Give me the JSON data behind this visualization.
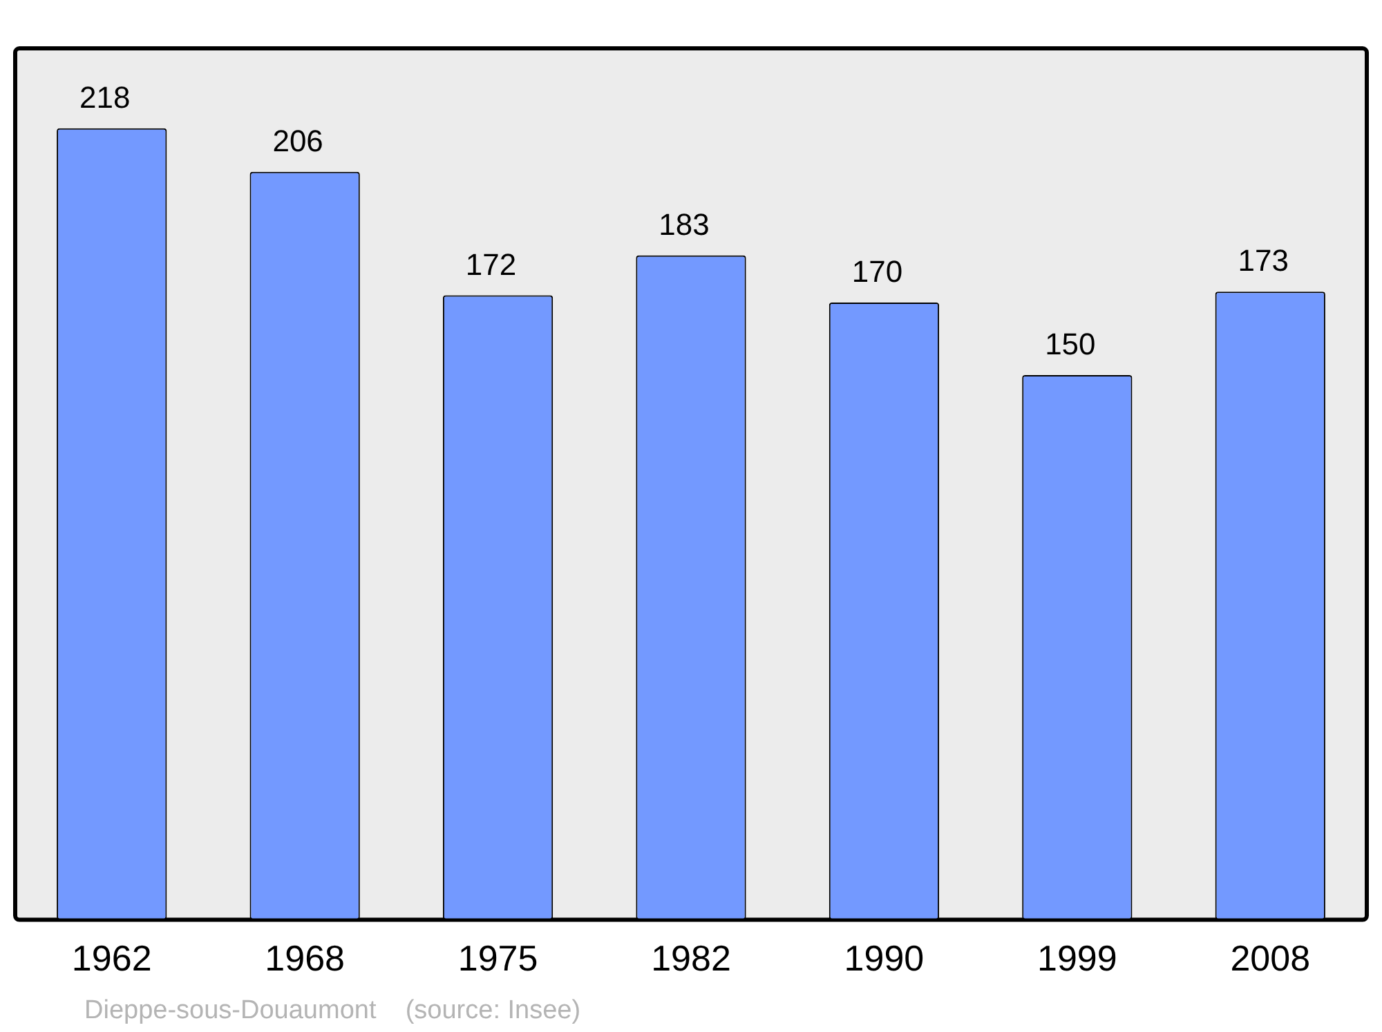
{
  "chart_data": {
    "type": "bar",
    "categories": [
      "1962",
      "1968",
      "1975",
      "1982",
      "1990",
      "1999",
      "2008"
    ],
    "values": [
      218,
      206,
      172,
      183,
      170,
      150,
      173
    ],
    "color": "#7399ff",
    "ylim": [
      0,
      240
    ],
    "data_labels": true,
    "grid": false,
    "legend": false,
    "annotations": [
      "Dieppe-sous-Douaumont    (source: Insee)"
    ]
  }
}
